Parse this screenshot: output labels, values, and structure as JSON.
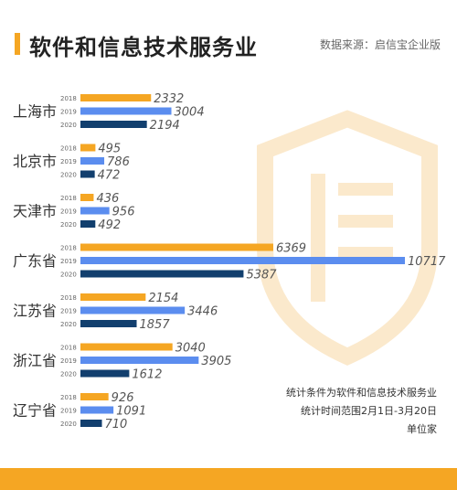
{
  "header": {
    "title": "软件和信息技术服务业",
    "source": "数据来源：启信宝企业版"
  },
  "notes": {
    "line1": "统计条件为软件和信息技术服务业",
    "line2": "统计时间范围2月1日-3月20日",
    "line3": "单位家"
  },
  "colors": {
    "y2018": "#f5a623",
    "y2019": "#5b8def",
    "y2020": "#123f6e",
    "accent": "#f5a623"
  },
  "chart_data": {
    "type": "bar",
    "orientation": "horizontal",
    "unit": "家",
    "categories": [
      "上海市",
      "北京市",
      "天津市",
      "广东省",
      "江苏省",
      "浙江省",
      "辽宁省"
    ],
    "series": [
      {
        "name": "2018",
        "values": [
          2332,
          495,
          436,
          6369,
          2154,
          3040,
          926
        ]
      },
      {
        "name": "2019",
        "values": [
          3004,
          786,
          956,
          10717,
          3446,
          3905,
          1091
        ]
      },
      {
        "name": "2020",
        "values": [
          2194,
          472,
          492,
          5387,
          1857,
          1612,
          710
        ]
      }
    ]
  }
}
